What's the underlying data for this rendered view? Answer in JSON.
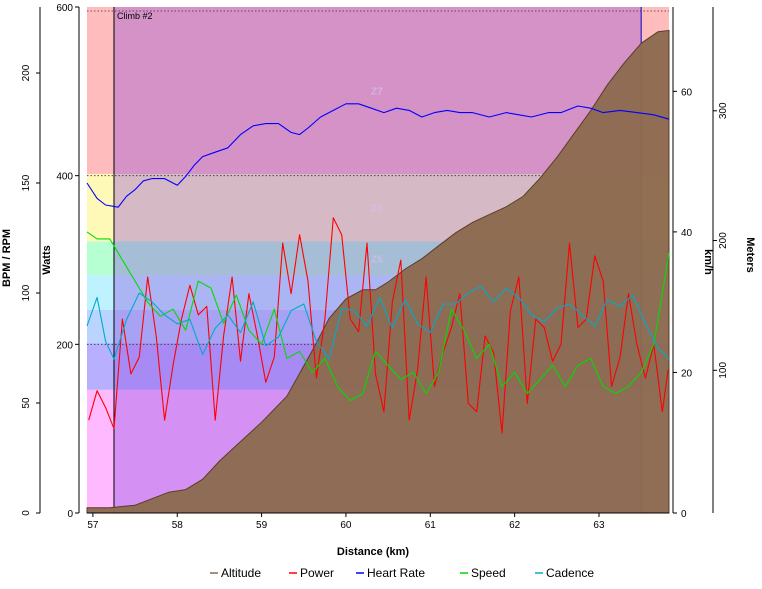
{
  "chart_data": {
    "type": "line",
    "xlabel": "Distance (km)",
    "xlim": [
      56.93,
      63.83
    ],
    "x_ticks": [
      57,
      58,
      59,
      60,
      61,
      62,
      63
    ],
    "axes": {
      "bpm_rpm": {
        "label": "BPM / RPM",
        "lim": [
          0,
          230
        ],
        "ticks": [
          0,
          50,
          100,
          150,
          200
        ]
      },
      "watts": {
        "label": "Watts",
        "lim": [
          0,
          600
        ],
        "ticks": [
          0,
          200,
          400,
          600
        ]
      },
      "kmh": {
        "label": "km/h",
        "lim": [
          0,
          72
        ],
        "ticks": [
          0,
          20,
          40,
          60
        ]
      },
      "meters": {
        "label": "Meters",
        "lim": [
          -10,
          380
        ],
        "ticks": [
          100,
          200,
          300
        ]
      }
    },
    "interval": {
      "label": "Climb #2",
      "start_km": 57.25,
      "end_km": 63.5
    },
    "zones": [
      {
        "label": "Z1",
        "from_w": 0,
        "to_w": 146,
        "color": "#ffb9ff"
      },
      {
        "label": "Z2",
        "from_w": 146,
        "to_w": 201,
        "color": "#b8b0ff"
      },
      {
        "label": "Z3",
        "from_w": 201,
        "to_w": 241,
        "color": "#b8d4ff"
      },
      {
        "label": "Z4",
        "from_w": 241,
        "to_w": 282,
        "color": "#bff2ff"
      },
      {
        "label": "Z5",
        "from_w": 282,
        "to_w": 322,
        "color": "#b5ffd2"
      },
      {
        "label": "Z6",
        "from_w": 322,
        "to_w": 402,
        "color": "#fff9b8"
      },
      {
        "label": "Z7",
        "from_w": 402,
        "to_w": 600,
        "color": "#ffbcbc"
      }
    ],
    "series": [
      {
        "name": "Altitude",
        "axis": "meters",
        "color": "#8c6a4f",
        "x": [
          56.93,
          57.2,
          57.5,
          57.9,
          58.1,
          58.3,
          58.5,
          58.7,
          59.0,
          59.3,
          59.6,
          59.8,
          60.0,
          60.2,
          60.35,
          60.5,
          60.7,
          60.9,
          61.1,
          61.3,
          61.5,
          61.7,
          61.9,
          62.1,
          62.3,
          62.5,
          62.7,
          62.9,
          63.1,
          63.3,
          63.5,
          63.7,
          63.83
        ],
        "y": [
          -6,
          -6,
          -4,
          6,
          8,
          16,
          30,
          42,
          60,
          80,
          115,
          140,
          155,
          162,
          162,
          168,
          178,
          186,
          196,
          206,
          214,
          220,
          226,
          234,
          248,
          264,
          282,
          300,
          320,
          337,
          352,
          361,
          362
        ]
      },
      {
        "name": "Power",
        "axis": "watts",
        "color": "#ff0000",
        "x": [
          56.95,
          57.05,
          57.15,
          57.25,
          57.35,
          57.45,
          57.55,
          57.65,
          57.75,
          57.85,
          57.95,
          58.05,
          58.15,
          58.25,
          58.35,
          58.45,
          58.55,
          58.65,
          58.75,
          58.85,
          58.95,
          59.05,
          59.15,
          59.25,
          59.35,
          59.45,
          59.55,
          59.65,
          59.75,
          59.85,
          59.95,
          60.05,
          60.15,
          60.25,
          60.35,
          60.45,
          60.55,
          60.65,
          60.75,
          60.85,
          60.95,
          61.05,
          61.15,
          61.25,
          61.35,
          61.45,
          61.55,
          61.65,
          61.75,
          61.85,
          61.95,
          62.05,
          62.15,
          62.25,
          62.35,
          62.45,
          62.55,
          62.65,
          62.75,
          62.85,
          62.95,
          63.05,
          63.15,
          63.25,
          63.35,
          63.45,
          63.55,
          63.65,
          63.75,
          63.82
        ],
        "y": [
          110,
          145,
          125,
          100,
          230,
          165,
          185,
          280,
          210,
          110,
          175,
          230,
          270,
          235,
          245,
          110,
          210,
          280,
          180,
          260,
          210,
          155,
          185,
          320,
          260,
          330,
          275,
          160,
          230,
          350,
          330,
          230,
          215,
          320,
          165,
          120,
          250,
          300,
          110,
          170,
          280,
          150,
          190,
          220,
          260,
          130,
          120,
          210,
          190,
          95,
          240,
          280,
          130,
          230,
          220,
          180,
          200,
          320,
          220,
          230,
          305,
          275,
          150,
          185,
          260,
          200,
          160,
          200,
          120,
          170
        ]
      },
      {
        "name": "Heart Rate",
        "axis": "bpm_rpm",
        "color": "#0000ff",
        "x": [
          56.93,
          57.05,
          57.15,
          57.3,
          57.4,
          57.5,
          57.6,
          57.7,
          57.85,
          58.0,
          58.1,
          58.2,
          58.3,
          58.45,
          58.6,
          58.75,
          58.9,
          59.05,
          59.2,
          59.35,
          59.45,
          59.55,
          59.7,
          59.85,
          60.0,
          60.15,
          60.3,
          60.45,
          60.6,
          60.75,
          60.9,
          61.05,
          61.2,
          61.35,
          61.5,
          61.7,
          61.9,
          62.05,
          62.2,
          62.4,
          62.55,
          62.75,
          62.9,
          63.05,
          63.25,
          63.45,
          63.65,
          63.83
        ],
        "y": [
          150,
          143,
          140,
          139,
          144,
          147,
          151,
          152,
          152,
          149,
          153,
          158,
          162,
          164,
          166,
          172,
          176,
          177,
          177,
          173,
          172,
          175,
          180,
          183,
          186,
          186,
          184,
          182,
          184,
          183,
          180,
          182,
          183,
          182,
          182,
          180,
          182,
          181,
          180,
          182,
          182,
          185,
          184,
          182,
          183,
          182,
          181,
          179
        ]
      },
      {
        "name": "Speed",
        "axis": "kmh",
        "color": "#00dd00",
        "x": [
          56.93,
          57.05,
          57.2,
          57.35,
          57.5,
          57.65,
          57.8,
          57.95,
          58.1,
          58.25,
          58.4,
          58.55,
          58.7,
          58.85,
          59.0,
          59.15,
          59.3,
          59.45,
          59.6,
          59.75,
          59.9,
          60.05,
          60.2,
          60.35,
          60.5,
          60.65,
          60.8,
          60.95,
          61.1,
          61.25,
          61.4,
          61.55,
          61.7,
          61.85,
          62.0,
          62.15,
          62.3,
          62.45,
          62.6,
          62.75,
          62.9,
          63.05,
          63.2,
          63.35,
          63.5,
          63.65,
          63.83
        ],
        "y": [
          40,
          39,
          39,
          36,
          33,
          30,
          28,
          29,
          26,
          33,
          32,
          27,
          31,
          26,
          24,
          29,
          22,
          23,
          20,
          22,
          18,
          16,
          17,
          23,
          21,
          19,
          20,
          17,
          20,
          29,
          26,
          22,
          24,
          18,
          20,
          17,
          19,
          21,
          18,
          21,
          22,
          18,
          17,
          18,
          20,
          24,
          37
        ]
      },
      {
        "name": "Cadence",
        "axis": "bpm_rpm",
        "color": "#00aacc",
        "x": [
          56.93,
          57.05,
          57.15,
          57.25,
          57.4,
          57.55,
          57.7,
          57.85,
          58.0,
          58.15,
          58.3,
          58.45,
          58.6,
          58.75,
          58.9,
          59.05,
          59.2,
          59.35,
          59.5,
          59.65,
          59.8,
          59.95,
          60.1,
          60.25,
          60.4,
          60.55,
          60.7,
          60.85,
          61.0,
          61.15,
          61.3,
          61.45,
          61.6,
          61.75,
          61.9,
          62.05,
          62.2,
          62.35,
          62.5,
          62.65,
          62.8,
          62.95,
          63.1,
          63.25,
          63.4,
          63.55,
          63.7,
          63.83
        ],
        "y": [
          85,
          98,
          78,
          70,
          88,
          100,
          96,
          90,
          86,
          88,
          72,
          84,
          90,
          82,
          96,
          76,
          80,
          92,
          95,
          78,
          70,
          93,
          92,
          85,
          98,
          84,
          97,
          86,
          82,
          95,
          95,
          100,
          103,
          96,
          102,
          98,
          90,
          87,
          93,
          95,
          90,
          85,
          97,
          94,
          99,
          86,
          75,
          70
        ]
      }
    ],
    "legend": {
      "position": "bottom",
      "entries": [
        "Altitude",
        "Power",
        "Heart Rate",
        "Speed",
        "Cadence"
      ]
    }
  }
}
